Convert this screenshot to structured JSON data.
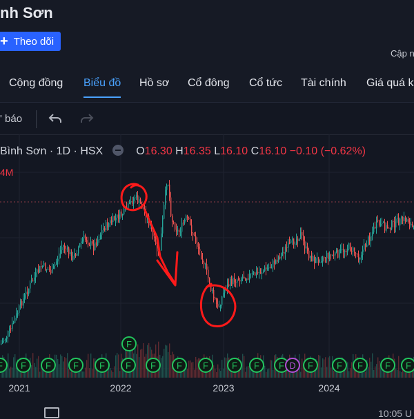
{
  "header": {
    "title": "nh Sơn",
    "follow_label": "Theo dõi",
    "updated_label": "Cập n"
  },
  "tabs": [
    {
      "label": "Cộng đồng",
      "active": false
    },
    {
      "label": "Biểu đồ",
      "active": true
    },
    {
      "label": "Hồ sơ",
      "active": false
    },
    {
      "label": "Cổ đông",
      "active": false
    },
    {
      "label": "Cổ tức",
      "active": false
    },
    {
      "label": "Tài chính",
      "active": false
    },
    {
      "label": "Giá quá k",
      "active": false
    }
  ],
  "toolbar": {
    "alert_label": "' báo"
  },
  "legend": {
    "symbol": "Bình Sơn · 1D · HSX",
    "o_label": "O",
    "o_value": "16.30",
    "h_label": "H",
    "h_value": "16.35",
    "l_label": "L",
    "l_value": "16.10",
    "c_label": "C",
    "c_value": "16.10",
    "change": "−0.10 (−0.62%)"
  },
  "volume_label": "4M",
  "chart_data": {
    "type": "candlestick",
    "x_ticks": [
      "2021",
      "2022",
      "2023",
      "2024"
    ],
    "markers": [
      {
        "label": "F"
      },
      {
        "label": "F"
      },
      {
        "label": "F"
      },
      {
        "label": "F"
      },
      {
        "label": "F"
      },
      {
        "label": "F"
      },
      {
        "label": "F"
      },
      {
        "label": "F"
      },
      {
        "label": "F"
      },
      {
        "label": "F"
      },
      {
        "label": "F"
      },
      {
        "label": "F"
      },
      {
        "label": "D"
      },
      {
        "label": "F"
      },
      {
        "label": "F"
      },
      {
        "label": "F"
      },
      {
        "label": "F"
      },
      {
        "label": "F"
      },
      {
        "label": "F"
      }
    ],
    "lifted_marker": {
      "label": "F"
    },
    "colors": {
      "up": "#26a69a",
      "down": "#ef5350",
      "annotation": "#ff1a1a",
      "marker_f": "#22c55e",
      "marker_d": "#b14fd6"
    }
  },
  "bottom": {
    "time": "10:05 U"
  }
}
